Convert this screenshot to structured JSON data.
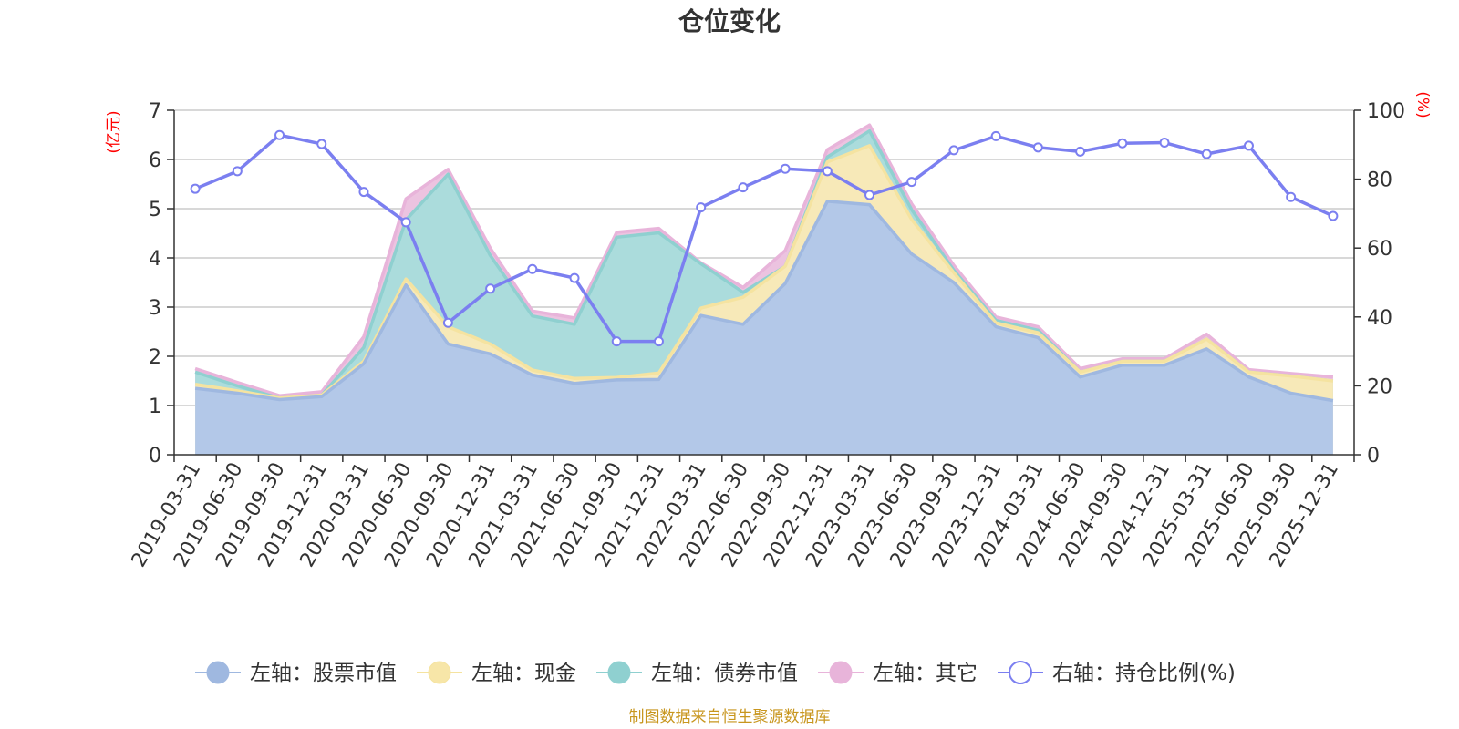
{
  "chart_data": {
    "type": "area",
    "title": "仓位变化",
    "left_axis_unit": "(亿元)",
    "right_axis_unit": "(%)",
    "categories": [
      "2019-03-31",
      "2019-06-30",
      "2019-09-30",
      "2019-12-31",
      "2020-03-31",
      "2020-06-30",
      "2020-09-30",
      "2020-12-31",
      "2021-03-31",
      "2021-06-30",
      "2021-09-30",
      "2021-12-31",
      "2022-03-31",
      "2022-06-30",
      "2022-09-30",
      "2022-12-31",
      "2023-03-31",
      "2023-06-30",
      "2023-09-30",
      "2023-12-31",
      "2024-03-31",
      "2024-06-30",
      "2024-09-30",
      "2024-12-31",
      "2025-03-31",
      "2025-06-30",
      "2025-09-30",
      "2025-12-31"
    ],
    "left_axis": {
      "min": 0,
      "max": 7,
      "ticks": [
        "0",
        "1",
        "2",
        "3",
        "4",
        "5",
        "6",
        "7"
      ]
    },
    "right_axis": {
      "min": 0,
      "max": 100,
      "ticks": [
        "0",
        "20",
        "40",
        "60",
        "80",
        "100"
      ]
    },
    "stacked_series": [
      {
        "name": "左轴：股票市值",
        "color": "#9fb8e0",
        "fill": "#b3c8e8",
        "values": [
          1.35,
          1.25,
          1.12,
          1.18,
          1.85,
          3.45,
          2.25,
          2.05,
          1.62,
          1.45,
          1.52,
          1.53,
          2.83,
          2.65,
          3.48,
          5.15,
          5.08,
          4.08,
          3.5,
          2.6,
          2.38,
          1.58,
          1.82,
          1.82,
          2.15,
          1.58,
          1.25,
          1.1
        ]
      },
      {
        "name": "左轴：现金",
        "color": "#f5e3a0",
        "fill": "#f7e9b8",
        "values": [
          0.08,
          0.05,
          0.03,
          0.03,
          0.05,
          0.12,
          0.35,
          0.2,
          0.1,
          0.1,
          0.05,
          0.13,
          0.15,
          0.55,
          0.35,
          0.8,
          1.2,
          0.7,
          0.2,
          0.08,
          0.1,
          0.1,
          0.08,
          0.08,
          0.2,
          0.1,
          0.35,
          0.4
        ]
      },
      {
        "name": "左轴：债券市值",
        "color": "#8fd0d0",
        "fill": "#abdcdc",
        "values": [
          0.25,
          0.1,
          0.0,
          0.0,
          0.28,
          1.2,
          3.1,
          1.8,
          1.1,
          1.1,
          2.85,
          2.85,
          0.9,
          0.1,
          0.0,
          0.1,
          0.3,
          0.2,
          0.05,
          0.05,
          0.05,
          0.0,
          0.0,
          0.0,
          0.0,
          0.0,
          0.0,
          0.0
        ]
      },
      {
        "name": "左轴：其它",
        "color": "#e8b4da",
        "fill": "#ecc3e0",
        "values": [
          0.07,
          0.07,
          0.05,
          0.07,
          0.22,
          0.43,
          0.1,
          0.15,
          0.1,
          0.13,
          0.1,
          0.09,
          0.02,
          0.1,
          0.32,
          0.15,
          0.12,
          0.12,
          0.1,
          0.07,
          0.07,
          0.07,
          0.05,
          0.05,
          0.1,
          0.05,
          0.05,
          0.08
        ]
      }
    ],
    "line_series": {
      "name": "右轴：持仓比例(%)",
      "color": "#7b7ff0",
      "values": [
        77.2,
        82.3,
        92.8,
        90.2,
        76.3,
        67.5,
        38.3,
        48.2,
        53.9,
        51.3,
        32.9,
        32.9,
        71.8,
        77.6,
        83.0,
        82.3,
        75.4,
        79.2,
        88.4,
        92.5,
        89.2,
        88.0,
        90.4,
        90.6,
        87.3,
        89.7,
        74.8,
        69.3
      ]
    }
  },
  "legend": [
    {
      "label": "左轴：股票市值",
      "kind": "circle",
      "color": "#9fb8e0",
      "fill": "#9fb8e0"
    },
    {
      "label": "左轴：现金",
      "kind": "circle",
      "color": "#f5e3a0",
      "fill": "#f7e6a8"
    },
    {
      "label": "左轴：债券市值",
      "kind": "circle",
      "color": "#8fd0d0",
      "fill": "#8fd0d0"
    },
    {
      "label": "左轴：其它",
      "kind": "circle",
      "color": "#e8b4da",
      "fill": "#e8b4da"
    },
    {
      "label": "右轴：持仓比例(%)",
      "kind": "hollow",
      "color": "#7b7ff0",
      "fill": "#ffffff"
    }
  ],
  "source": "制图数据来自恒生聚源数据库"
}
